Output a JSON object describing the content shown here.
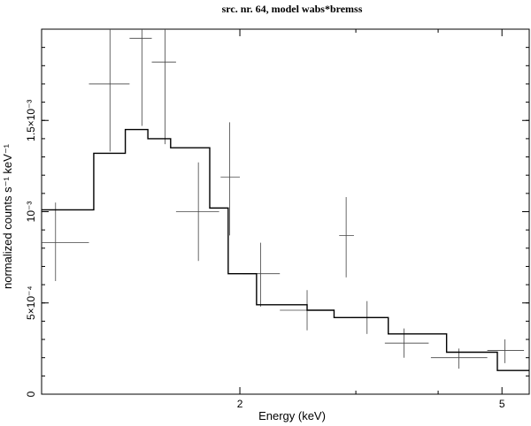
{
  "chart_data": {
    "type": "scatter",
    "title": "src. nr. 64, model wabs*bremss",
    "xlabel": "Energy (keV)",
    "ylabel": "normalized counts s⁻¹ keV⁻¹",
    "x_scale": "log",
    "xlim": [
      1.0,
      5.5
    ],
    "ylim": [
      0,
      0.002
    ],
    "x_ticks": [
      {
        "value": 2,
        "label": "2"
      },
      {
        "value": 5,
        "label": "5"
      }
    ],
    "y_ticks": [
      {
        "value": 0,
        "label": "0"
      },
      {
        "value": 0.0005,
        "label": "5×10⁻⁴"
      },
      {
        "value": 0.001,
        "label": "10⁻³"
      },
      {
        "value": 0.0015,
        "label": "1.5×10⁻³"
      }
    ],
    "series": [
      {
        "role": "data",
        "style": "crosses",
        "points": [
          {
            "x": 1.05,
            "xlo": 1.0,
            "xhi": 1.18,
            "y": 0.00083,
            "ylo": 0.00062,
            "yhi": 0.00105
          },
          {
            "x": 1.27,
            "xlo": 1.18,
            "xhi": 1.36,
            "y": 0.0017,
            "ylo": 0.00133,
            "yhi": 0.00205
          },
          {
            "x": 1.42,
            "xlo": 1.36,
            "xhi": 1.47,
            "y": 0.00195,
            "ylo": 0.00147,
            "yhi": 0.00205
          },
          {
            "x": 1.54,
            "xlo": 1.47,
            "xhi": 1.6,
            "y": 0.00182,
            "ylo": 0.00137,
            "yhi": 0.00205
          },
          {
            "x": 1.73,
            "xlo": 1.6,
            "xhi": 1.86,
            "y": 0.001,
            "ylo": 0.00073,
            "yhi": 0.00127
          },
          {
            "x": 1.93,
            "xlo": 1.87,
            "xhi": 2.0,
            "y": 0.00119,
            "ylo": 0.00087,
            "yhi": 0.00149
          },
          {
            "x": 2.15,
            "xlo": 2.02,
            "xhi": 2.3,
            "y": 0.00066,
            "ylo": 0.00048,
            "yhi": 0.00083
          },
          {
            "x": 2.53,
            "xlo": 2.3,
            "xhi": 2.78,
            "y": 0.00046,
            "ylo": 0.00035,
            "yhi": 0.00057
          },
          {
            "x": 2.9,
            "xlo": 2.83,
            "xhi": 2.98,
            "y": 0.00087,
            "ylo": 0.00064,
            "yhi": 0.00108
          },
          {
            "x": 3.12,
            "xlo": 2.95,
            "xhi": 3.32,
            "y": 0.00042,
            "ylo": 0.00033,
            "yhi": 0.00051
          },
          {
            "x": 3.55,
            "xlo": 3.32,
            "xhi": 3.87,
            "y": 0.00028,
            "ylo": 0.0002,
            "yhi": 0.00036
          },
          {
            "x": 4.3,
            "xlo": 3.9,
            "xhi": 4.75,
            "y": 0.0002,
            "ylo": 0.00014,
            "yhi": 0.00025
          },
          {
            "x": 5.05,
            "xlo": 4.75,
            "xhi": 5.4,
            "y": 0.00024,
            "ylo": 0.00017,
            "yhi": 0.0003
          }
        ]
      },
      {
        "role": "model",
        "style": "step",
        "edges": [
          1.0,
          1.2,
          1.34,
          1.45,
          1.57,
          1.8,
          1.92,
          2.12,
          2.53,
          2.78,
          3.36,
          4.12,
          4.92,
          5.5
        ],
        "values": [
          0.00101,
          0.00132,
          0.00145,
          0.0014,
          0.00135,
          0.00102,
          0.00066,
          0.00049,
          0.00046,
          0.00042,
          0.00033,
          0.00023,
          0.00013
        ]
      }
    ]
  }
}
